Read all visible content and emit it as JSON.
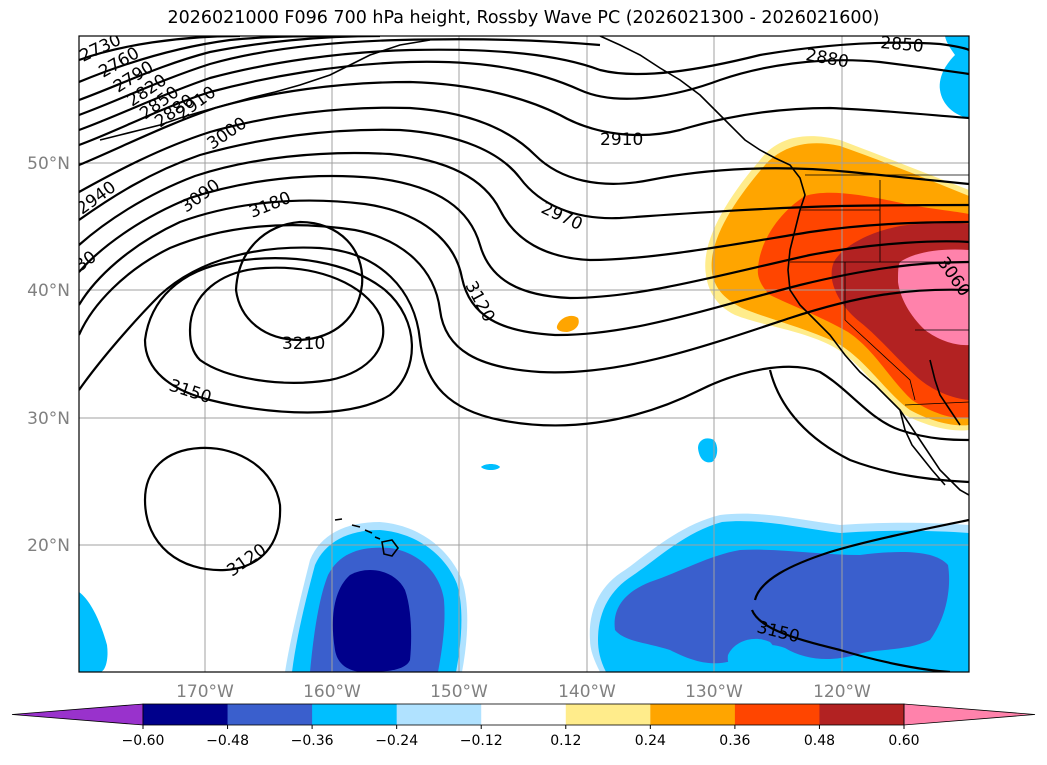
{
  "title": "2026021000 F096 700 hPa height, Rossby Wave PC (2026021300 - 2026021600)",
  "map": {
    "lon_labels": [
      "170°W",
      "160°W",
      "150°W",
      "140°W",
      "130°W",
      "120°W"
    ],
    "lat_labels": [
      "50°N",
      "40°N",
      "30°N",
      "20°N"
    ],
    "contour_labels": [
      "2730",
      "2760",
      "2790",
      "2820",
      "2850",
      "2880",
      "2910",
      "3000",
      "2940",
      "3090",
      "3180",
      "3210",
      "3150",
      "3120",
      "2910",
      "2970",
      "3120",
      "2880",
      "2850",
      "3060",
      "3150",
      "3120",
      "30"
    ]
  },
  "colorbar": {
    "ticks": [
      "−0.60",
      "−0.48",
      "−0.36",
      "−0.24",
      "−0.12",
      "0.12",
      "0.24",
      "0.36",
      "0.48",
      "0.60"
    ],
    "colors": [
      "#9932cc",
      "#00008b",
      "#3a5fcd",
      "#00bfff",
      "#b0e2ff",
      "#ffffff",
      "#ffec8b",
      "#ffa500",
      "#ff4500",
      "#b22222",
      "#ff82ab"
    ]
  },
  "colors": {
    "light_blue": "#b0e2ff",
    "deep_sky_blue": "#00bfff",
    "royal_blue": "#3a5fcd",
    "navy": "#00008b",
    "light_yellow": "#ffec8b",
    "orange": "#ffa500",
    "orange_red": "#ff4500",
    "firebrick": "#b22222",
    "pink": "#ff82ab",
    "gridline": "#a0a0a0",
    "contour": "#000000"
  }
}
